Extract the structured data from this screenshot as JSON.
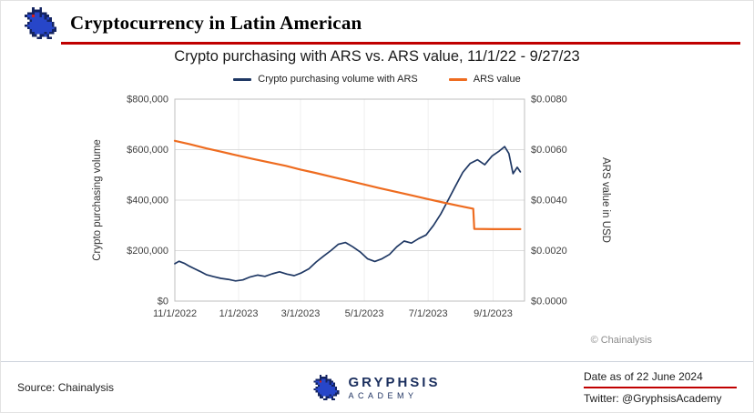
{
  "header": {
    "title": "Cryptocurrency in Latin American"
  },
  "accent_colors": {
    "underline_red": "#c00000",
    "navy": "#1f3864",
    "orange": "#ee6c20"
  },
  "chart_data": {
    "type": "line",
    "title": "Crypto purchasing with ARS vs. ARS value, 11/1/22 - 9/27/23",
    "watermark": "© Chainalysis",
    "legend_position": "top",
    "grid": true,
    "x_axis": {
      "type": "date",
      "range": [
        "2022-11-01",
        "2023-10-01"
      ],
      "tick_dates": [
        "2022-11-01",
        "2023-01-01",
        "2023-03-01",
        "2023-05-01",
        "2023-07-01",
        "2023-09-01"
      ],
      "tick_labels": [
        "11/1/2022",
        "1/1/2023",
        "3/1/2023",
        "5/1/2023",
        "7/1/2023",
        "9/1/2023"
      ]
    },
    "left_axis": {
      "label": "Crypto purchasing volume",
      "range": [
        0,
        800000
      ],
      "tick_labels_bottom_to_top": [
        "$0",
        "$200,000",
        "$400,000",
        "$600,000",
        "$800,000"
      ]
    },
    "right_axis": {
      "label": "ARS value in USD",
      "range": [
        0,
        0.008
      ],
      "tick_labels_bottom_to_top": [
        "$0.0000",
        "$0.0020",
        "$0.0040",
        "$0.0060",
        "$0.0080"
      ]
    },
    "series": [
      {
        "name": "Crypto purchasing volume with ARS",
        "axis": "left",
        "color": "#1f3864",
        "points": [
          [
            "2022-11-01",
            148000
          ],
          [
            "2022-11-05",
            158000
          ],
          [
            "2022-11-10",
            150000
          ],
          [
            "2022-11-15",
            138000
          ],
          [
            "2022-11-20",
            128000
          ],
          [
            "2022-11-25",
            118000
          ],
          [
            "2022-12-01",
            105000
          ],
          [
            "2022-12-08",
            97000
          ],
          [
            "2022-12-15",
            90000
          ],
          [
            "2022-12-22",
            86000
          ],
          [
            "2022-12-29",
            80000
          ],
          [
            "2023-01-05",
            84000
          ],
          [
            "2023-01-12",
            96000
          ],
          [
            "2023-01-19",
            103000
          ],
          [
            "2023-01-26",
            98000
          ],
          [
            "2023-02-02",
            108000
          ],
          [
            "2023-02-09",
            116000
          ],
          [
            "2023-02-16",
            107000
          ],
          [
            "2023-02-23",
            101000
          ],
          [
            "2023-03-02",
            112000
          ],
          [
            "2023-03-09",
            128000
          ],
          [
            "2023-03-16",
            155000
          ],
          [
            "2023-03-23",
            178000
          ],
          [
            "2023-03-30",
            200000
          ],
          [
            "2023-04-06",
            225000
          ],
          [
            "2023-04-13",
            232000
          ],
          [
            "2023-04-20",
            215000
          ],
          [
            "2023-04-27",
            195000
          ],
          [
            "2023-05-04",
            168000
          ],
          [
            "2023-05-11",
            157000
          ],
          [
            "2023-05-18",
            168000
          ],
          [
            "2023-05-25",
            185000
          ],
          [
            "2023-06-01",
            215000
          ],
          [
            "2023-06-08",
            238000
          ],
          [
            "2023-06-15",
            230000
          ],
          [
            "2023-06-22",
            248000
          ],
          [
            "2023-06-29",
            262000
          ],
          [
            "2023-07-06",
            300000
          ],
          [
            "2023-07-13",
            345000
          ],
          [
            "2023-07-20",
            400000
          ],
          [
            "2023-07-27",
            455000
          ],
          [
            "2023-08-03",
            510000
          ],
          [
            "2023-08-10",
            545000
          ],
          [
            "2023-08-17",
            560000
          ],
          [
            "2023-08-24",
            540000
          ],
          [
            "2023-08-31",
            575000
          ],
          [
            "2023-09-07",
            595000
          ],
          [
            "2023-09-12",
            612000
          ],
          [
            "2023-09-16",
            585000
          ],
          [
            "2023-09-20",
            505000
          ],
          [
            "2023-09-24",
            530000
          ],
          [
            "2023-09-27",
            512000
          ]
        ]
      },
      {
        "name": "ARS value",
        "axis": "right",
        "color": "#ee6c20",
        "points": [
          [
            "2022-11-01",
            0.00635
          ],
          [
            "2022-11-15",
            0.00622
          ],
          [
            "2022-12-01",
            0.00605
          ],
          [
            "2022-12-15",
            0.00592
          ],
          [
            "2023-01-01",
            0.00576
          ],
          [
            "2023-01-15",
            0.00563
          ],
          [
            "2023-02-01",
            0.00548
          ],
          [
            "2023-02-15",
            0.00536
          ],
          [
            "2023-03-01",
            0.00521
          ],
          [
            "2023-03-15",
            0.00508
          ],
          [
            "2023-04-01",
            0.00491
          ],
          [
            "2023-04-15",
            0.00478
          ],
          [
            "2023-05-01",
            0.00462
          ],
          [
            "2023-05-15",
            0.00448
          ],
          [
            "2023-06-01",
            0.00432
          ],
          [
            "2023-06-15",
            0.00419
          ],
          [
            "2023-07-01",
            0.00404
          ],
          [
            "2023-07-15",
            0.00391
          ],
          [
            "2023-08-01",
            0.00376
          ],
          [
            "2023-08-13",
            0.00366
          ],
          [
            "2023-08-14",
            0.00286
          ],
          [
            "2023-09-01",
            0.00285
          ],
          [
            "2023-09-27",
            0.00285
          ]
        ]
      }
    ]
  },
  "footer": {
    "source": "Source: Chainalysis",
    "brand": {
      "line1": "GRYPHSIS",
      "line2": "ACADEMY"
    },
    "date": "Date as of 22 June 2024",
    "twitter": "Twitter: @GryphsisAcademy"
  }
}
